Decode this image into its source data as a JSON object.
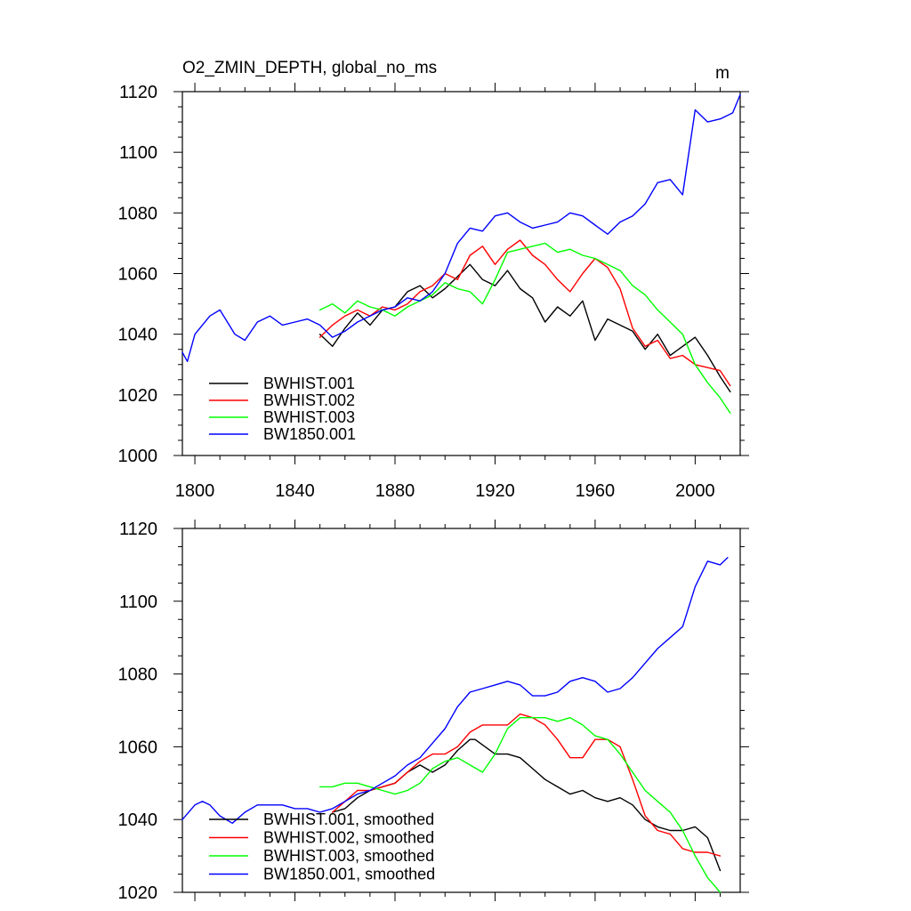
{
  "chart_data": [
    {
      "type": "line",
      "title": "O2_ZMIN_DEPTH, global_no_ms",
      "units": "m",
      "xlim": [
        1795,
        2018
      ],
      "ylim": [
        1000,
        1120
      ],
      "xticks": [
        1800,
        1840,
        1880,
        1920,
        1960,
        2000
      ],
      "yticks": [
        1000,
        1020,
        1040,
        1060,
        1080,
        1100,
        1120
      ],
      "xtick_labels": [
        "1800",
        "1840",
        "1880",
        "1920",
        "1960",
        "2000"
      ],
      "ytick_labels": [
        "1000",
        "1020",
        "1040",
        "1060",
        "1080",
        "1100",
        "1120"
      ],
      "legend": "bottom-left",
      "series": [
        {
          "name": "BWHIST.001",
          "color": "#000000",
          "x": [
            1850,
            1855,
            1860,
            1865,
            1870,
            1875,
            1880,
            1885,
            1890,
            1895,
            1900,
            1905,
            1910,
            1915,
            1920,
            1925,
            1930,
            1935,
            1940,
            1945,
            1950,
            1955,
            1960,
            1965,
            1970,
            1975,
            1980,
            1985,
            1990,
            1995,
            2000,
            2005,
            2010,
            2014
          ],
          "y": [
            1040,
            1036,
            1042,
            1047,
            1043,
            1048,
            1049,
            1054,
            1056,
            1052,
            1055,
            1059,
            1063,
            1058,
            1056,
            1061,
            1055,
            1052,
            1044,
            1049,
            1046,
            1051,
            1038,
            1045,
            1043,
            1041,
            1035,
            1040,
            1033,
            1036,
            1039,
            1033,
            1026,
            1021
          ]
        },
        {
          "name": "BWHIST.002",
          "color": "#ff0000",
          "x": [
            1850,
            1855,
            1860,
            1865,
            1870,
            1875,
            1880,
            1885,
            1890,
            1895,
            1900,
            1905,
            1910,
            1915,
            1920,
            1925,
            1930,
            1935,
            1940,
            1945,
            1950,
            1955,
            1960,
            1965,
            1970,
            1975,
            1980,
            1985,
            1990,
            1995,
            2000,
            2005,
            2010,
            2014
          ],
          "y": [
            1039,
            1043,
            1046,
            1048,
            1046,
            1049,
            1048,
            1050,
            1054,
            1056,
            1060,
            1058,
            1066,
            1069,
            1063,
            1068,
            1071,
            1066,
            1063,
            1058,
            1054,
            1060,
            1065,
            1062,
            1055,
            1042,
            1036,
            1038,
            1032,
            1033,
            1030,
            1029,
            1028,
            1023
          ]
        },
        {
          "name": "BWHIST.003",
          "color": "#00ff00",
          "x": [
            1850,
            1855,
            1860,
            1865,
            1870,
            1875,
            1880,
            1885,
            1890,
            1895,
            1900,
            1905,
            1910,
            1915,
            1920,
            1925,
            1930,
            1935,
            1940,
            1945,
            1950,
            1955,
            1960,
            1965,
            1970,
            1975,
            1980,
            1985,
            1990,
            1995,
            2000,
            2005,
            2010,
            2014
          ],
          "y": [
            1048,
            1050,
            1047,
            1051,
            1049,
            1048,
            1046,
            1049,
            1051,
            1053,
            1057,
            1055,
            1054,
            1050,
            1058,
            1067,
            1068,
            1069,
            1070,
            1067,
            1068,
            1066,
            1065,
            1063,
            1061,
            1056,
            1053,
            1048,
            1044,
            1040,
            1030,
            1024,
            1019,
            1014
          ]
        },
        {
          "name": "BW1850.001",
          "color": "#0000ff",
          "x": [
            1795,
            1797,
            1800,
            1803,
            1806,
            1810,
            1813,
            1816,
            1820,
            1825,
            1830,
            1835,
            1840,
            1845,
            1850,
            1855,
            1860,
            1865,
            1870,
            1875,
            1880,
            1885,
            1890,
            1895,
            1900,
            1905,
            1910,
            1915,
            1920,
            1925,
            1930,
            1935,
            1940,
            1945,
            1950,
            1955,
            1960,
            1965,
            1970,
            1975,
            1980,
            1985,
            1990,
            1995,
            2000,
            2005,
            2010,
            2015,
            2018
          ],
          "y": [
            1034,
            1031,
            1040,
            1043,
            1046,
            1048,
            1044,
            1040,
            1038,
            1044,
            1046,
            1043,
            1044,
            1045,
            1043,
            1039,
            1041,
            1044,
            1046,
            1048,
            1049,
            1052,
            1051,
            1054,
            1060,
            1070,
            1075,
            1074,
            1079,
            1080,
            1077,
            1075,
            1076,
            1077,
            1080,
            1079,
            1076,
            1073,
            1077,
            1079,
            1083,
            1090,
            1091,
            1086,
            1114,
            1110,
            1111,
            1113,
            1119
          ]
        }
      ]
    },
    {
      "type": "line",
      "title": "",
      "xlim": [
        1795,
        2018
      ],
      "ylim": [
        1020,
        1120
      ],
      "xticks": [
        1800,
        1840,
        1880,
        1920,
        1960,
        2000
      ],
      "yticks": [
        1020,
        1040,
        1060,
        1080,
        1100,
        1120
      ],
      "ytick_labels": [
        "1020",
        "1040",
        "1060",
        "1080",
        "1100",
        "1120"
      ],
      "legend": "bottom-left",
      "series": [
        {
          "name": "BWHIST.001, smoothed",
          "color": "#000000",
          "x": [
            1855,
            1860,
            1865,
            1870,
            1875,
            1880,
            1885,
            1890,
            1895,
            1900,
            1905,
            1910,
            1912,
            1920,
            1925,
            1930,
            1935,
            1940,
            1945,
            1950,
            1955,
            1960,
            1965,
            1970,
            1975,
            1980,
            1985,
            1990,
            1995,
            2000,
            2005,
            2010
          ],
          "y": [
            1042,
            1043,
            1046,
            1048,
            1049,
            1050,
            1053,
            1055,
            1053,
            1055,
            1059,
            1062,
            1062,
            1058,
            1058,
            1057,
            1054,
            1051,
            1049,
            1047,
            1048,
            1046,
            1045,
            1046,
            1044,
            1040,
            1038,
            1037,
            1037,
            1038,
            1035,
            1026
          ]
        },
        {
          "name": "BWHIST.002, smoothed",
          "color": "#ff0000",
          "x": [
            1855,
            1860,
            1865,
            1870,
            1875,
            1880,
            1885,
            1890,
            1895,
            1900,
            1905,
            1910,
            1915,
            1920,
            1925,
            1930,
            1935,
            1940,
            1945,
            1950,
            1955,
            1960,
            1965,
            1970,
            1975,
            1980,
            1985,
            1990,
            1995,
            2000,
            2005,
            2010
          ],
          "y": [
            1042,
            1045,
            1048,
            1048,
            1049,
            1050,
            1053,
            1056,
            1058,
            1058,
            1060,
            1064,
            1066,
            1066,
            1066,
            1069,
            1068,
            1066,
            1062,
            1057,
            1057,
            1062,
            1062,
            1060,
            1051,
            1041,
            1037,
            1036,
            1032,
            1031,
            1031,
            1030
          ]
        },
        {
          "name": "BWHIST.003, smoothed",
          "color": "#00ff00",
          "x": [
            1850,
            1855,
            1860,
            1865,
            1870,
            1875,
            1880,
            1885,
            1890,
            1895,
            1900,
            1905,
            1910,
            1915,
            1920,
            1925,
            1930,
            1935,
            1940,
            1945,
            1950,
            1955,
            1960,
            1965,
            1970,
            1975,
            1980,
            1985,
            1990,
            1995,
            2000,
            2005,
            2010
          ],
          "y": [
            1049,
            1049,
            1050,
            1050,
            1049,
            1048,
            1047,
            1048,
            1050,
            1054,
            1056,
            1057,
            1055,
            1053,
            1058,
            1065,
            1068,
            1068,
            1068,
            1067,
            1068,
            1066,
            1063,
            1062,
            1058,
            1053,
            1048,
            1045,
            1042,
            1037,
            1030,
            1024,
            1020
          ]
        },
        {
          "name": "BW1850.001, smoothed",
          "color": "#0000ff",
          "x": [
            1795,
            1800,
            1803,
            1806,
            1810,
            1815,
            1820,
            1825,
            1830,
            1835,
            1840,
            1845,
            1850,
            1855,
            1860,
            1865,
            1870,
            1875,
            1880,
            1885,
            1890,
            1895,
            1900,
            1905,
            1910,
            1915,
            1920,
            1925,
            1930,
            1935,
            1940,
            1945,
            1950,
            1955,
            1960,
            1965,
            1970,
            1975,
            1980,
            1985,
            1990,
            1995,
            2000,
            2005,
            2010,
            2013
          ],
          "y": [
            1040,
            1044,
            1045,
            1044,
            1041,
            1039,
            1042,
            1044,
            1044,
            1044,
            1043,
            1043,
            1042,
            1043,
            1045,
            1047,
            1048,
            1050,
            1052,
            1055,
            1057,
            1061,
            1065,
            1071,
            1075,
            1076,
            1077,
            1078,
            1077,
            1074,
            1074,
            1075,
            1078,
            1079,
            1078,
            1075,
            1076,
            1079,
            1083,
            1087,
            1090,
            1093,
            1104,
            1111,
            1110,
            1112
          ]
        }
      ]
    }
  ]
}
